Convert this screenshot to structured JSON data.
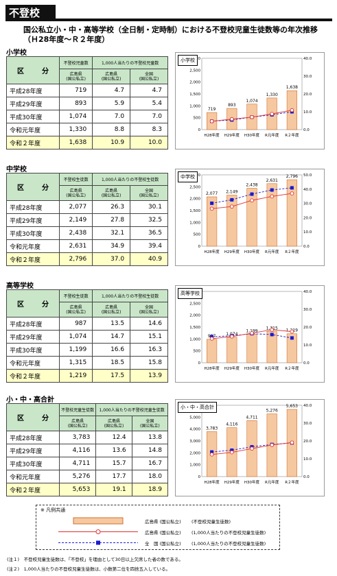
{
  "header": {
    "title": "不登校"
  },
  "subtitle": "国公私立小・中・高等学校（全日制・定時制）における不登校児童生徒数等の年次推移（Ｈ28年度～Ｒ２年度）",
  "columns": {
    "kubun": "区　分",
    "count_small": "不登校児童数",
    "count_other": "不登校生徒数",
    "count_mixed": "不登校児童生徒数",
    "rate_small": "1,000人当たりの不登校児童数",
    "rate_other": "1,000人当たりの不登校生徒数",
    "rate_mixed": "1,000人当たりの不登校児童生徒数",
    "hiroshima": "広島県\n(国公私立)",
    "national": "全国\n(国公私立)"
  },
  "sections": [
    {
      "label": "小学校",
      "countKey": "count_small",
      "rateKey": "rate_small",
      "rows": [
        {
          "year": "平成28年度",
          "count": "719",
          "hiroshima": "4.7",
          "national": "4.7"
        },
        {
          "year": "平成29年度",
          "count": "893",
          "hiroshima": "5.9",
          "national": "5.4"
        },
        {
          "year": "平成30年度",
          "count": "1,074",
          "hiroshima": "7.0",
          "national": "7.0"
        },
        {
          "year": "令和元年度",
          "count": "1,330",
          "hiroshima": "8.8",
          "national": "8.3"
        },
        {
          "year": "令和２年度",
          "count": "1,638",
          "hiroshima": "10.9",
          "national": "10.0"
        }
      ]
    },
    {
      "label": "中学校",
      "countKey": "count_other",
      "rateKey": "rate_other",
      "rows": [
        {
          "year": "平成28年度",
          "count": "2,077",
          "hiroshima": "26.3",
          "national": "30.1"
        },
        {
          "year": "平成29年度",
          "count": "2,149",
          "hiroshima": "27.8",
          "national": "32.5"
        },
        {
          "year": "平成30年度",
          "count": "2,438",
          "hiroshima": "32.1",
          "national": "36.5"
        },
        {
          "year": "令和元年度",
          "count": "2,631",
          "hiroshima": "34.9",
          "national": "39.4"
        },
        {
          "year": "令和２年度",
          "count": "2,796",
          "hiroshima": "37.0",
          "national": "40.9"
        }
      ]
    },
    {
      "label": "高等学校",
      "countKey": "count_other",
      "rateKey": "rate_other",
      "rows": [
        {
          "year": "平成28年度",
          "count": "987",
          "hiroshima": "13.5",
          "national": "14.6"
        },
        {
          "year": "平成29年度",
          "count": "1,074",
          "hiroshima": "14.7",
          "national": "15.1"
        },
        {
          "year": "平成30年度",
          "count": "1,199",
          "hiroshima": "16.6",
          "national": "16.3"
        },
        {
          "year": "令和元年度",
          "count": "1,315",
          "hiroshima": "18.5",
          "national": "15.8"
        },
        {
          "year": "令和２年度",
          "count": "1,219",
          "hiroshima": "17.5",
          "national": "13.9"
        }
      ]
    },
    {
      "label": "小・中・高合計",
      "countKey": "count_mixed",
      "rateKey": "rate_mixed",
      "rows": [
        {
          "year": "平成28年度",
          "count": "3,783",
          "hiroshima": "12.4",
          "national": "13.8"
        },
        {
          "year": "平成29年度",
          "count": "4,116",
          "hiroshima": "13.6",
          "national": "14.8"
        },
        {
          "year": "平成30年度",
          "count": "4,711",
          "hiroshima": "15.7",
          "national": "16.7"
        },
        {
          "year": "令和元年度",
          "count": "5,276",
          "hiroshima": "17.7",
          "national": "18.0"
        },
        {
          "year": "令和２年度",
          "count": "5,653",
          "hiroshima": "19.1",
          "national": "18.9"
        }
      ]
    }
  ],
  "chart_data": [
    {
      "type": "bar",
      "title": "小学校",
      "categories": [
        "H28年度",
        "H29年度",
        "H30年度",
        "R元年度",
        "R２年度"
      ],
      "series": [
        {
          "values": [
            719,
            893,
            1074,
            1330,
            1638
          ]
        },
        {
          "values": [
            4.7,
            5.9,
            7.0,
            8.8,
            10.9
          ]
        },
        {
          "values": [
            4.7,
            5.4,
            7.0,
            8.3,
            10.0
          ]
        }
      ],
      "ylim": [
        0,
        3000
      ],
      "yticks": [
        "0",
        "500",
        "1,000",
        "1,500",
        "2,000",
        "2,500",
        "3,000"
      ],
      "y2lim": [
        0,
        40
      ],
      "y2ticks": [
        "0.0",
        "10.0",
        "20.0",
        "30.0",
        "40.0"
      ],
      "labels": [
        "719",
        "893",
        "1,074",
        "1,330",
        "1,638"
      ]
    },
    {
      "type": "bar",
      "title": "中学校",
      "categories": [
        "H28年度",
        "H29年度",
        "H30年度",
        "R元年度",
        "R２年度"
      ],
      "series": [
        {
          "values": [
            2077,
            2149,
            2438,
            2631,
            2796
          ]
        },
        {
          "values": [
            26.3,
            27.8,
            32.1,
            34.9,
            37.0
          ]
        },
        {
          "values": [
            30.1,
            32.5,
            36.5,
            39.4,
            40.9
          ]
        }
      ],
      "ylim": [
        0,
        3000
      ],
      "yticks": [
        "0",
        "500",
        "1,000",
        "1,500",
        "2,000",
        "2,500",
        "3,000"
      ],
      "y2lim": [
        0,
        50
      ],
      "y2ticks": [
        "0.0",
        "10.0",
        "20.0",
        "30.0",
        "40.0",
        "50.0"
      ],
      "labels": [
        "2,077",
        "2,149",
        "2,438",
        "2,631",
        "2,796"
      ]
    },
    {
      "type": "bar",
      "title": "高等学校",
      "categories": [
        "H28年度",
        "H29年度",
        "H30年度",
        "R元年度",
        "R２年度"
      ],
      "series": [
        {
          "values": [
            987,
            1074,
            1199,
            1315,
            1219
          ]
        },
        {
          "values": [
            13.5,
            14.7,
            16.6,
            18.5,
            17.5
          ]
        },
        {
          "values": [
            14.6,
            15.1,
            16.3,
            15.8,
            13.9
          ]
        }
      ],
      "ylim": [
        0,
        3000
      ],
      "yticks": [
        "0",
        "500",
        "1,000",
        "1,500",
        "2,000",
        "2,500",
        "3,000"
      ],
      "y2lim": [
        0,
        40
      ],
      "y2ticks": [
        "0.0",
        "10.0",
        "20.0",
        "30.0",
        "40.0"
      ],
      "labels": [
        "987",
        "1,074",
        "1,199",
        "1,315",
        "1,219"
      ]
    },
    {
      "type": "bar",
      "title": "小・中・高合計",
      "categories": [
        "H28年度",
        "H29年度",
        "H30年度",
        "R元年度",
        "R２年度"
      ],
      "series": [
        {
          "values": [
            3783,
            4116,
            4711,
            5276,
            5653
          ]
        },
        {
          "values": [
            12.4,
            13.6,
            15.7,
            17.7,
            19.1
          ]
        },
        {
          "values": [
            13.8,
            14.8,
            16.7,
            18.0,
            18.9
          ]
        }
      ],
      "ylim": [
        0,
        6000
      ],
      "yticks": [
        "0",
        "1,000",
        "2,000",
        "3,000",
        "4,000",
        "5,000",
        "6,000"
      ],
      "y2lim": [
        0,
        40
      ],
      "y2ticks": [
        "0.0",
        "10.0",
        "20.0",
        "30.0",
        "40.0"
      ],
      "labels": [
        "3,783",
        "4,116",
        "4,711",
        "5,276",
        "5,653"
      ]
    }
  ],
  "colors": {
    "bar_fill": "#f5c8a0",
    "bar_stroke": "#d07030",
    "hiroshima_line": "#e03030",
    "national_line": "#1a1ad0"
  },
  "legend": {
    "title": "※ 凡例共通",
    "rows": [
      {
        "a": "広島県 (国公私立)",
        "b": "(不登校児童生徒数)"
      },
      {
        "a": "広島県 (国公私立)",
        "b": "(1,000人当たりの不登校児童生徒数)"
      },
      {
        "a": "全　国 (国公私立)",
        "b": "(1,000人当たりの不登校児童生徒数)"
      }
    ]
  },
  "notes": [
    "(注１)　不登校児童生徒数は、「不登校」を理由として30日以上欠席した者の数である。",
    "(注２)　1,000人当たりの不登校児童生徒数は、小数第二位を四捨五入している。"
  ]
}
